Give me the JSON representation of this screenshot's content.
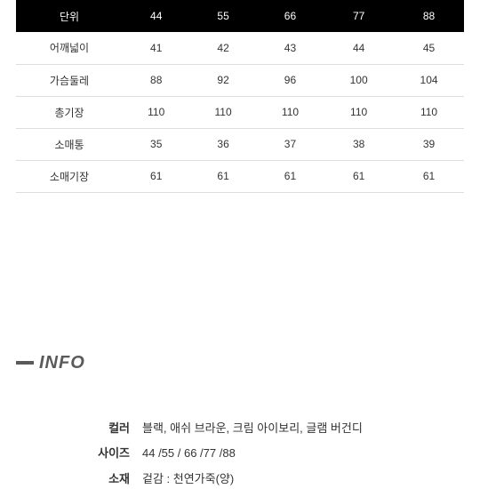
{
  "table": {
    "header_bg": "#000000",
    "header_fg": "#ffffff",
    "border_color": "#dddddd",
    "text_color": "#333333",
    "columns": [
      "단위",
      "44",
      "55",
      "66",
      "77",
      "88"
    ],
    "rows": [
      {
        "label": "어깨넓이",
        "cells": [
          "41",
          "42",
          "43",
          "44",
          "45"
        ]
      },
      {
        "label": "가슴둘레",
        "cells": [
          "88",
          "92",
          "96",
          "100",
          "104"
        ]
      },
      {
        "label": "총기장",
        "cells": [
          "110",
          "110",
          "110",
          "110",
          "110"
        ]
      },
      {
        "label": "소매통",
        "cells": [
          "35",
          "36",
          "37",
          "38",
          "39"
        ]
      },
      {
        "label": "소매기장",
        "cells": [
          "61",
          "61",
          "61",
          "61",
          "61"
        ]
      }
    ]
  },
  "info": {
    "heading": "INFO",
    "heading_color": "#5a5a5a",
    "items": [
      {
        "label": "컬러",
        "value": "블랙, 애쉬 브라운, 크림 아이보리, 글램 버건디"
      },
      {
        "label": "사이즈",
        "value": "44 /55 / 66 /77 /88"
      },
      {
        "label": "소재",
        "value": "겉감 : 천연가죽(양)"
      }
    ]
  }
}
